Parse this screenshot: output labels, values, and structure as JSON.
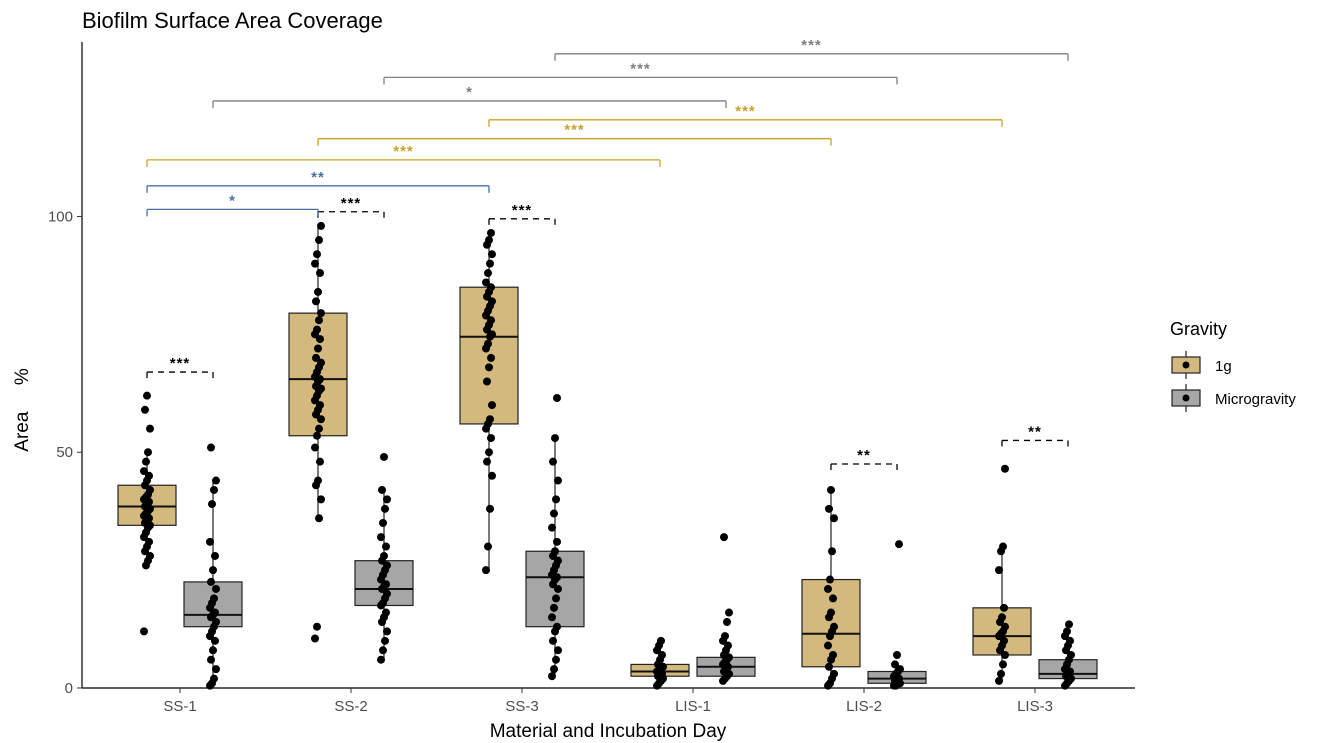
{
  "chart_data": {
    "type": "box",
    "title": "Biofilm Surface Area Coverage",
    "xlabel": "Material and Incubation Day",
    "ylabel": "Area     %",
    "ylim": [
      0,
      137
    ],
    "yticks": [
      0,
      50,
      100
    ],
    "categories": [
      "SS-1",
      "SS-2",
      "SS-3",
      "LIS-1",
      "LIS-2",
      "LIS-3"
    ],
    "legend": {
      "title": "Gravity",
      "position": "right",
      "entries": [
        {
          "name": "1g",
          "color": "#d3b97d"
        },
        {
          "name": "Microgravity",
          "color": "#a6a6a6"
        }
      ]
    },
    "series": [
      {
        "name": "1g",
        "color": "#d3b97d",
        "boxes": [
          {
            "category": "SS-1",
            "min": 26,
            "q1": 34.5,
            "median": 38.5,
            "q3": 43,
            "max": 50,
            "outliers": [
              12,
              55,
              59,
              62
            ],
            "points": [
              12,
              26,
              27,
              28,
              29,
              30,
              31,
              32,
              33,
              34,
              34.5,
              35,
              35.5,
              36,
              36.5,
              37,
              37.5,
              38,
              38.5,
              39,
              39.5,
              40,
              40.5,
              41,
              42,
              43,
              44,
              45,
              46,
              48,
              50,
              55,
              59,
              62
            ]
          },
          {
            "category": "SS-2",
            "min": 36,
            "q1": 53.5,
            "median": 65.5,
            "q3": 79.5,
            "max": 98,
            "outliers": [
              10.5,
              13
            ],
            "points": [
              10.5,
              13,
              36,
              40,
              43,
              44,
              48,
              51,
              53.5,
              55,
              57,
              58,
              59,
              60,
              61,
              62,
              63,
              63.5,
              64,
              65,
              65.5,
              66,
              67,
              68,
              69,
              70,
              72,
              74,
              75,
              76,
              78,
              79.5,
              82,
              84,
              88,
              90,
              92,
              95,
              98
            ]
          },
          {
            "category": "SS-3",
            "min": 25,
            "q1": 56,
            "median": 74.5,
            "q3": 85,
            "max": 96.5,
            "outliers": [],
            "points": [
              25,
              30,
              38,
              45,
              48,
              50,
              53,
              55,
              56,
              57,
              60,
              65,
              68,
              70,
              72,
              73,
              74.5,
              75,
              76,
              77,
              78,
              79,
              80,
              81,
              82,
              83,
              84,
              85,
              86,
              88,
              90,
              92,
              94,
              95,
              96.5
            ]
          },
          {
            "category": "LIS-1",
            "min": 0.5,
            "q1": 2.5,
            "median": 3.5,
            "q3": 5,
            "max": 8,
            "outliers": [
              9,
              10
            ],
            "points": [
              0.5,
              1,
              1.5,
              2,
              2.5,
              3,
              3,
              3.5,
              3.5,
              4,
              4.5,
              5,
              6,
              7,
              8,
              9,
              10
            ]
          },
          {
            "category": "LIS-2",
            "min": 0.5,
            "q1": 4.5,
            "median": 11.5,
            "q3": 23,
            "max": 42,
            "outliers": [],
            "points": [
              0.5,
              1,
              2,
              3,
              4.5,
              6,
              7,
              9,
              11,
              12,
              13,
              15,
              16,
              19,
              21,
              23,
              29,
              36,
              38,
              42
            ]
          },
          {
            "category": "LIS-3",
            "min": 1.5,
            "q1": 7,
            "median": 11,
            "q3": 17,
            "max": 30,
            "outliers": [
              46.5
            ],
            "points": [
              1.5,
              3,
              5,
              7,
              8,
              9,
              10,
              11,
              11.5,
              12,
              13,
              14,
              15,
              17,
              25,
              29,
              30,
              46.5
            ]
          }
        ]
      },
      {
        "name": "Microgravity",
        "color": "#a6a6a6",
        "boxes": [
          {
            "category": "SS-1",
            "min": 0.5,
            "q1": 13,
            "median": 15.5,
            "q3": 22.5,
            "max": 44,
            "outliers": [
              51
            ],
            "points": [
              0.5,
              1,
              2,
              4,
              6,
              8,
              10,
              11,
              12,
              13,
              14,
              15,
              15.5,
              16,
              17,
              18,
              19,
              21,
              22.5,
              25,
              28,
              31,
              39,
              42,
              44,
              51
            ]
          },
          {
            "category": "SS-2",
            "min": 6,
            "q1": 17.5,
            "median": 21,
            "q3": 27,
            "max": 42,
            "outliers": [
              49
            ],
            "points": [
              6,
              8,
              10,
              12,
              14,
              15,
              16,
              17.5,
              18,
              19,
              20,
              21,
              21.5,
              22,
              23,
              24,
              25,
              26,
              27,
              28,
              30,
              32,
              35,
              38,
              40,
              42,
              49
            ]
          },
          {
            "category": "SS-3",
            "min": 2.5,
            "q1": 13,
            "median": 23.5,
            "q3": 29,
            "max": 53,
            "outliers": [
              61.5
            ],
            "points": [
              2.5,
              4,
              6,
              8,
              10,
              12,
              13,
              15,
              17,
              19,
              21,
              22,
              23,
              23.5,
              24,
              25,
              26,
              27,
              28,
              29,
              31,
              34,
              37,
              40,
              44,
              48,
              53,
              61.5
            ]
          },
          {
            "category": "LIS-1",
            "min": 1.5,
            "q1": 2.5,
            "median": 4.5,
            "q3": 6.5,
            "max": 11,
            "outliers": [
              14,
              16,
              32
            ],
            "points": [
              1.5,
              2,
              2.5,
              3,
              3.5,
              4,
              4.5,
              5,
              5.5,
              6,
              6.5,
              7,
              8,
              9,
              10,
              11,
              14,
              16,
              32
            ]
          },
          {
            "category": "LIS-2",
            "min": 0.5,
            "q1": 1,
            "median": 2,
            "q3": 3.5,
            "max": 5,
            "outliers": [
              7,
              30.5
            ],
            "points": [
              0.5,
              0.5,
              1,
              1,
              1.5,
              2,
              2,
              2.5,
              3,
              3.5,
              4,
              5,
              7,
              30.5
            ]
          },
          {
            "category": "LIS-3",
            "min": 0.5,
            "q1": 2,
            "median": 3,
            "q3": 6,
            "max": 12,
            "outliers": [
              13.5
            ],
            "points": [
              0.5,
              1,
              1.5,
              2,
              2.5,
              3,
              3.5,
              4,
              5,
              6,
              7,
              8,
              9,
              10,
              11,
              12,
              13.5
            ]
          }
        ]
      }
    ],
    "annotations": [
      {
        "type": "dashed",
        "from": "SS-1 1g",
        "to": "SS-1 Microgravity",
        "y": 67,
        "label": "***",
        "color": "#000000"
      },
      {
        "type": "dashed",
        "from": "SS-2 1g",
        "to": "SS-2 Microgravity",
        "y": 101,
        "label": "***",
        "color": "#000000"
      },
      {
        "type": "dashed",
        "from": "SS-3 1g",
        "to": "SS-3 Microgravity",
        "y": 99.5,
        "label": "***",
        "color": "#000000"
      },
      {
        "type": "dashed",
        "from": "LIS-2 1g",
        "to": "LIS-2 Microgravity",
        "y": 47.5,
        "label": "**",
        "color": "#000000"
      },
      {
        "type": "dashed",
        "from": "LIS-3 1g",
        "to": "LIS-3 Microgravity",
        "y": 52.5,
        "label": "**",
        "color": "#000000"
      },
      {
        "type": "bracket",
        "from": "SS-1 1g",
        "to": "SS-2 1g",
        "y": 101.5,
        "label": "*",
        "color": "#4a6fa5"
      },
      {
        "type": "bracket",
        "from": "SS-1 1g",
        "to": "SS-3 1g",
        "y": 106.5,
        "label": "**",
        "color": "#4a6fa5"
      },
      {
        "type": "bracket",
        "from": "SS-1 1g",
        "to": "LIS-1 1g",
        "y": 112,
        "label": "***",
        "color": "#c9a227"
      },
      {
        "type": "bracket",
        "from": "SS-2 1g",
        "to": "LIS-2 1g",
        "y": 116.5,
        "label": "***",
        "color": "#c9a227"
      },
      {
        "type": "bracket",
        "from": "SS-3 1g",
        "to": "LIS-3 1g",
        "y": 120.5,
        "label": "***",
        "color": "#c9a227"
      },
      {
        "type": "bracket",
        "from": "SS-1 Microgravity",
        "to": "LIS-1 Microgravity",
        "y": 124.5,
        "label": "*",
        "color": "#7f7f7f"
      },
      {
        "type": "bracket",
        "from": "SS-2 Microgravity",
        "to": "LIS-2 Microgravity",
        "y": 129.5,
        "label": "***",
        "color": "#7f7f7f"
      },
      {
        "type": "bracket",
        "from": "SS-3 Microgravity",
        "to": "LIS-3 Microgravity",
        "y": 134.5,
        "label": "***",
        "color": "#7f7f7f"
      }
    ]
  }
}
